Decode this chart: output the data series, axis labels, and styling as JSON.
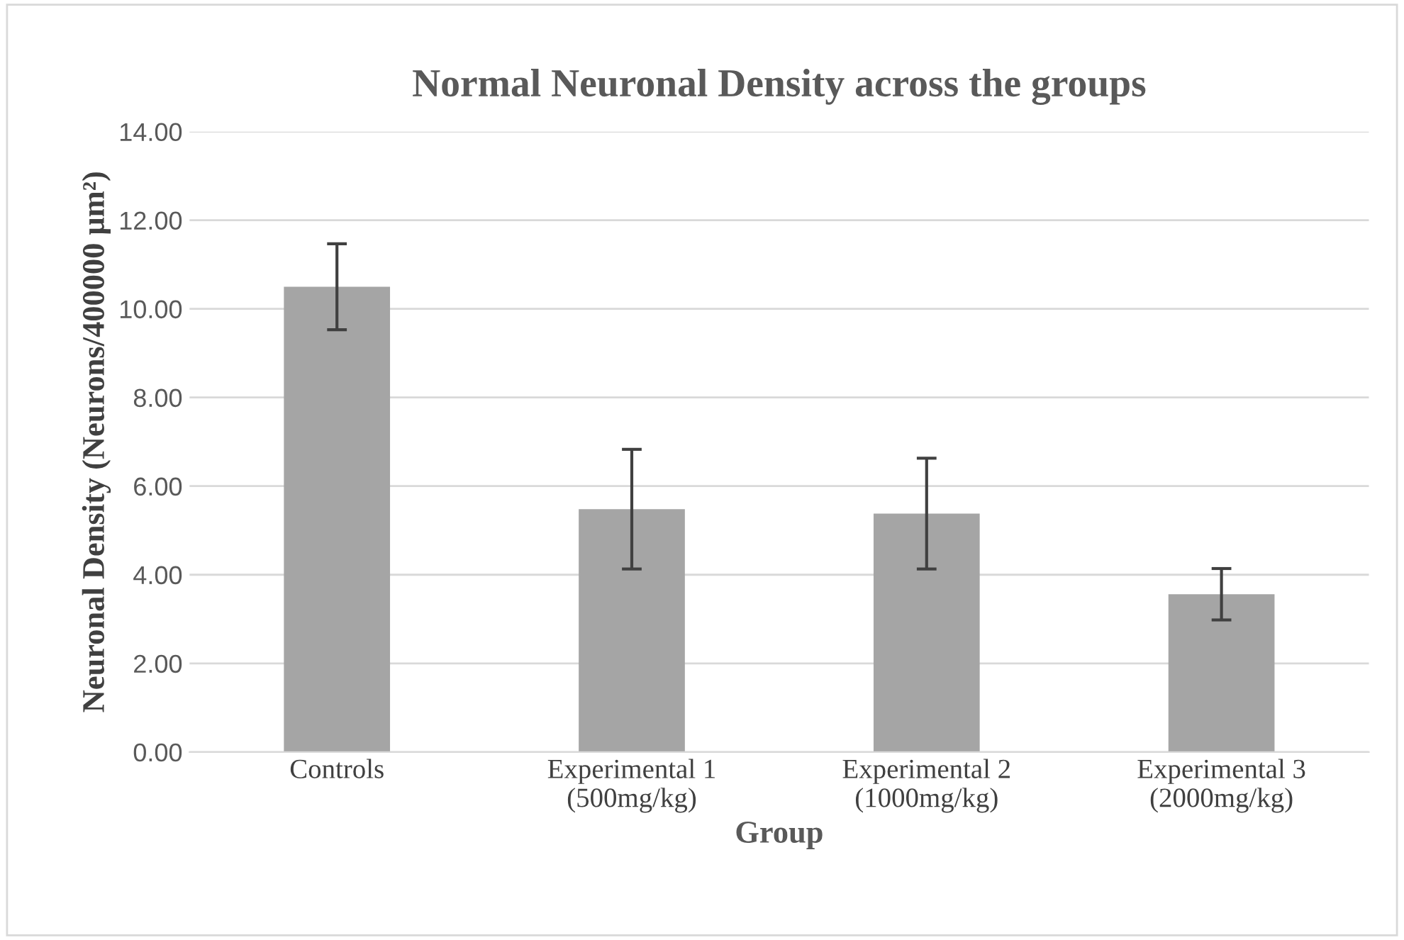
{
  "chart_data": {
    "type": "bar",
    "title": "Normal Neuronal Density across the groups",
    "xlabel": "Group",
    "ylabel": "Neuronal Density (Neurons/400000 μm²)",
    "categories": [
      "Controls",
      "Experimental 1\n(500mg/kg)",
      "Experimental 2\n(1000mg/kg)",
      "Experimental 3\n(2000mg/kg)"
    ],
    "values": [
      10.5,
      5.48,
      5.38,
      3.56
    ],
    "errors": [
      0.97,
      1.35,
      1.25,
      0.58
    ],
    "color": "#a5a5a5",
    "ylim": [
      0,
      14
    ],
    "yticks": [
      {
        "value": 0,
        "label": "0.00"
      },
      {
        "value": 2,
        "label": "2.00"
      },
      {
        "value": 4,
        "label": "4.00"
      },
      {
        "value": 6,
        "label": "6.00"
      },
      {
        "value": 8,
        "label": "8.00"
      },
      {
        "value": 10,
        "label": "10.00"
      },
      {
        "value": 12,
        "label": "12.00"
      },
      {
        "value": 14,
        "label": "14.00"
      }
    ],
    "grid": "y"
  }
}
